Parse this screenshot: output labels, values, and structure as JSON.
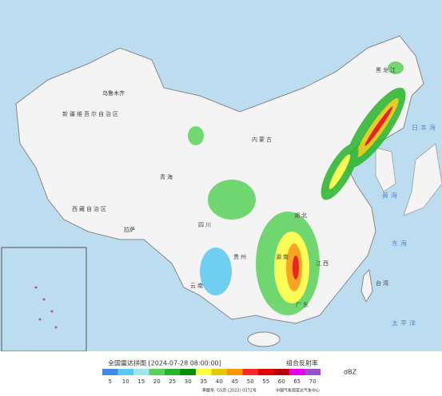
{
  "header": {
    "title": "全国雷达拼图 [2024-07-28 08:00:00]",
    "product": "组合反射率",
    "unit": "dBZ"
  },
  "scale": [
    {
      "label": "5",
      "color": "#3c8ce6"
    },
    {
      "label": "10",
      "color": "#5ac8f0"
    },
    {
      "label": "15",
      "color": "#9be6f0"
    },
    {
      "label": "20",
      "color": "#5ad25a"
    },
    {
      "label": "25",
      "color": "#28b428"
    },
    {
      "label": "30",
      "color": "#0a8c0a"
    },
    {
      "label": "35",
      "color": "#ffff3c"
    },
    {
      "label": "40",
      "color": "#e6c800"
    },
    {
      "label": "45",
      "color": "#ff9600"
    },
    {
      "label": "50",
      "color": "#ff2828"
    },
    {
      "label": "55",
      "color": "#e60000"
    },
    {
      "label": "60",
      "color": "#b40000"
    },
    {
      "label": "65",
      "color": "#e600e6"
    },
    {
      "label": "70",
      "color": "#9650c8"
    }
  ],
  "footer": {
    "approval": "审图号: GS京 (2022) 0372号",
    "agency": "中国气象局雷达气象中心"
  },
  "places": [
    "新疆维吾尔自治区",
    "西藏自治区",
    "青海",
    "内蒙古",
    "黑龙江",
    "四川",
    "云南",
    "贵州",
    "广东",
    "湖南",
    "湖北",
    "江西",
    "台湾",
    "乌鲁木齐",
    "拉萨",
    "日本海",
    "黄海",
    "东海",
    "太平洋"
  ]
}
